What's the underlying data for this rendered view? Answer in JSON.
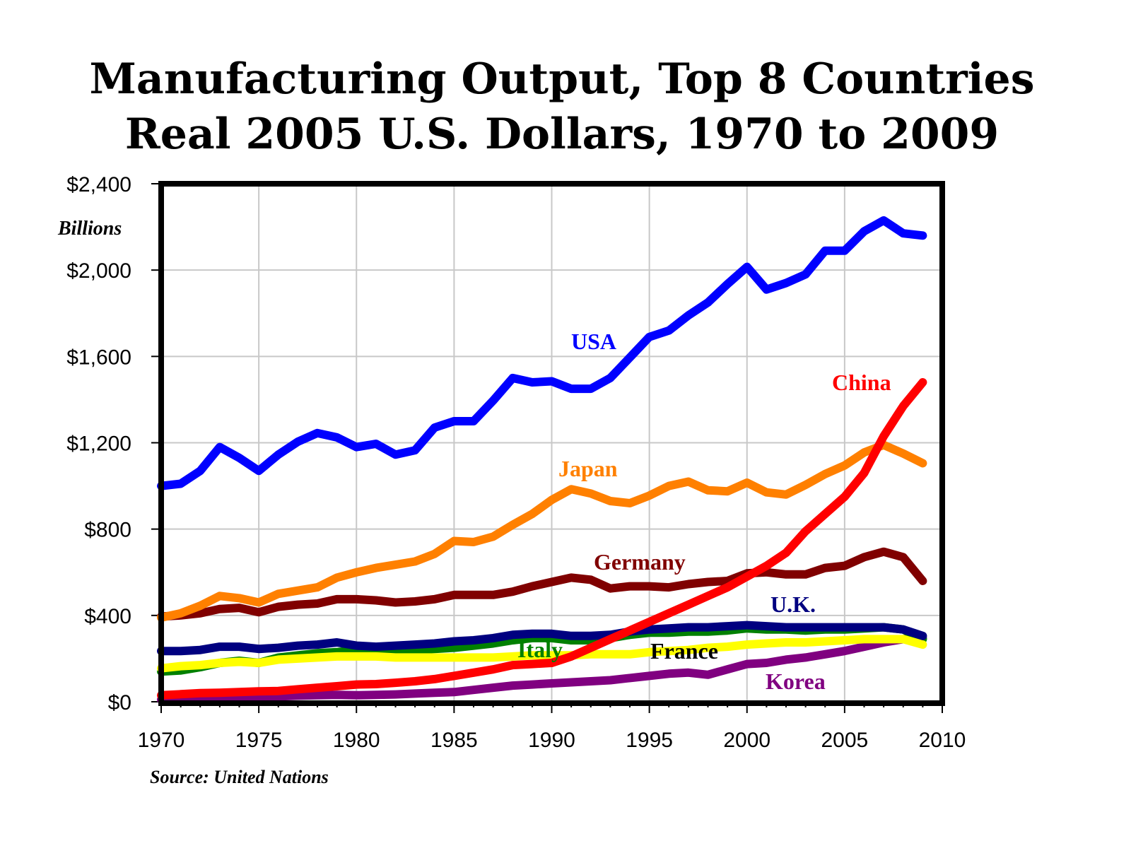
{
  "chart_data": {
    "type": "line",
    "title": "Manufacturing Output, Top 8 Countries",
    "subtitle": "Real 2005 U.S. Dollars, 1970 to 2009",
    "ylabel": "Billions",
    "source": "Source: United Nations",
    "xlim": [
      1970,
      2010
    ],
    "ylim": [
      0,
      2400
    ],
    "grid": true,
    "legend": "inline labels",
    "x_ticks": [
      "1970",
      "1975",
      "1980",
      "1985",
      "1990",
      "1995",
      "2000",
      "2005",
      "2010"
    ],
    "y_ticks": [
      "$0",
      "$400",
      "$800",
      "$1,200",
      "$1,600",
      "$2,000",
      "$2,400"
    ],
    "x": [
      1970,
      1971,
      1972,
      1973,
      1974,
      1975,
      1976,
      1977,
      1978,
      1979,
      1980,
      1981,
      1982,
      1983,
      1984,
      1985,
      1986,
      1987,
      1988,
      1989,
      1990,
      1991,
      1992,
      1993,
      1994,
      1995,
      1996,
      1997,
      1998,
      1999,
      2000,
      2001,
      2002,
      2003,
      2004,
      2005,
      2006,
      2007,
      2008,
      2009
    ],
    "series": [
      {
        "name": "Korea",
        "color": "#800080",
        "values": [
          10,
          12,
          14,
          16,
          20,
          22,
          25,
          28,
          30,
          32,
          30,
          32,
          34,
          38,
          42,
          45,
          55,
          65,
          75,
          80,
          85,
          90,
          95,
          100,
          110,
          120,
          130,
          135,
          125,
          150,
          175,
          180,
          195,
          205,
          220,
          235,
          255,
          275,
          290,
          295
        ]
      },
      {
        "name": "Italy",
        "color": "#008000",
        "values": [
          140,
          145,
          160,
          180,
          190,
          180,
          205,
          215,
          225,
          230,
          240,
          240,
          235,
          240,
          245,
          250,
          260,
          270,
          285,
          295,
          295,
          285,
          285,
          295,
          310,
          320,
          320,
          325,
          325,
          330,
          340,
          335,
          335,
          330,
          335,
          335,
          340,
          345,
          335,
          290
        ]
      },
      {
        "name": "France",
        "color": "#ffff00",
        "values": [
          155,
          165,
          170,
          180,
          185,
          180,
          195,
          200,
          205,
          210,
          210,
          210,
          205,
          205,
          205,
          205,
          205,
          205,
          210,
          215,
          215,
          215,
          220,
          220,
          220,
          230,
          235,
          240,
          250,
          255,
          265,
          270,
          275,
          275,
          280,
          285,
          290,
          290,
          290,
          265
        ]
      },
      {
        "name": "U.K.",
        "color": "#000080",
        "values": [
          235,
          235,
          240,
          255,
          255,
          245,
          250,
          260,
          265,
          275,
          260,
          255,
          260,
          265,
          270,
          280,
          285,
          295,
          310,
          315,
          315,
          305,
          305,
          310,
          325,
          335,
          340,
          345,
          345,
          350,
          355,
          350,
          345,
          345,
          345,
          345,
          345,
          345,
          335,
          305
        ]
      },
      {
        "name": "Germany",
        "color": "#800000",
        "values": [
          395,
          400,
          410,
          430,
          435,
          415,
          440,
          450,
          455,
          475,
          475,
          470,
          460,
          465,
          475,
          495,
          495,
          495,
          510,
          535,
          555,
          575,
          565,
          525,
          535,
          535,
          530,
          545,
          555,
          560,
          595,
          600,
          590,
          590,
          620,
          630,
          670,
          695,
          670,
          560
        ]
      },
      {
        "name": "Japan",
        "color": "#ff8000",
        "values": [
          390,
          410,
          445,
          490,
          480,
          460,
          500,
          515,
          530,
          575,
          600,
          620,
          635,
          650,
          685,
          745,
          740,
          765,
          820,
          870,
          935,
          985,
          965,
          930,
          920,
          955,
          1000,
          1020,
          980,
          975,
          1015,
          970,
          960,
          1005,
          1055,
          1095,
          1155,
          1190,
          1150,
          1105
        ]
      },
      {
        "name": "China",
        "color": "#ff0000",
        "values": [
          30,
          35,
          40,
          42,
          45,
          48,
          50,
          58,
          65,
          72,
          80,
          82,
          88,
          95,
          105,
          120,
          135,
          150,
          170,
          175,
          180,
          210,
          250,
          290,
          330,
          370,
          410,
          450,
          490,
          530,
          580,
          630,
          690,
          790,
          870,
          950,
          1060,
          1230,
          1370,
          1480
        ]
      },
      {
        "name": "USA",
        "color": "#0000ff",
        "values": [
          1000,
          1010,
          1070,
          1180,
          1130,
          1070,
          1145,
          1205,
          1245,
          1225,
          1180,
          1195,
          1145,
          1165,
          1270,
          1300,
          1300,
          1395,
          1500,
          1480,
          1485,
          1450,
          1450,
          1500,
          1595,
          1690,
          1720,
          1790,
          1850,
          1935,
          2015,
          1910,
          1940,
          1980,
          2090,
          2090,
          2180,
          2230,
          2170,
          2160
        ]
      }
    ]
  }
}
